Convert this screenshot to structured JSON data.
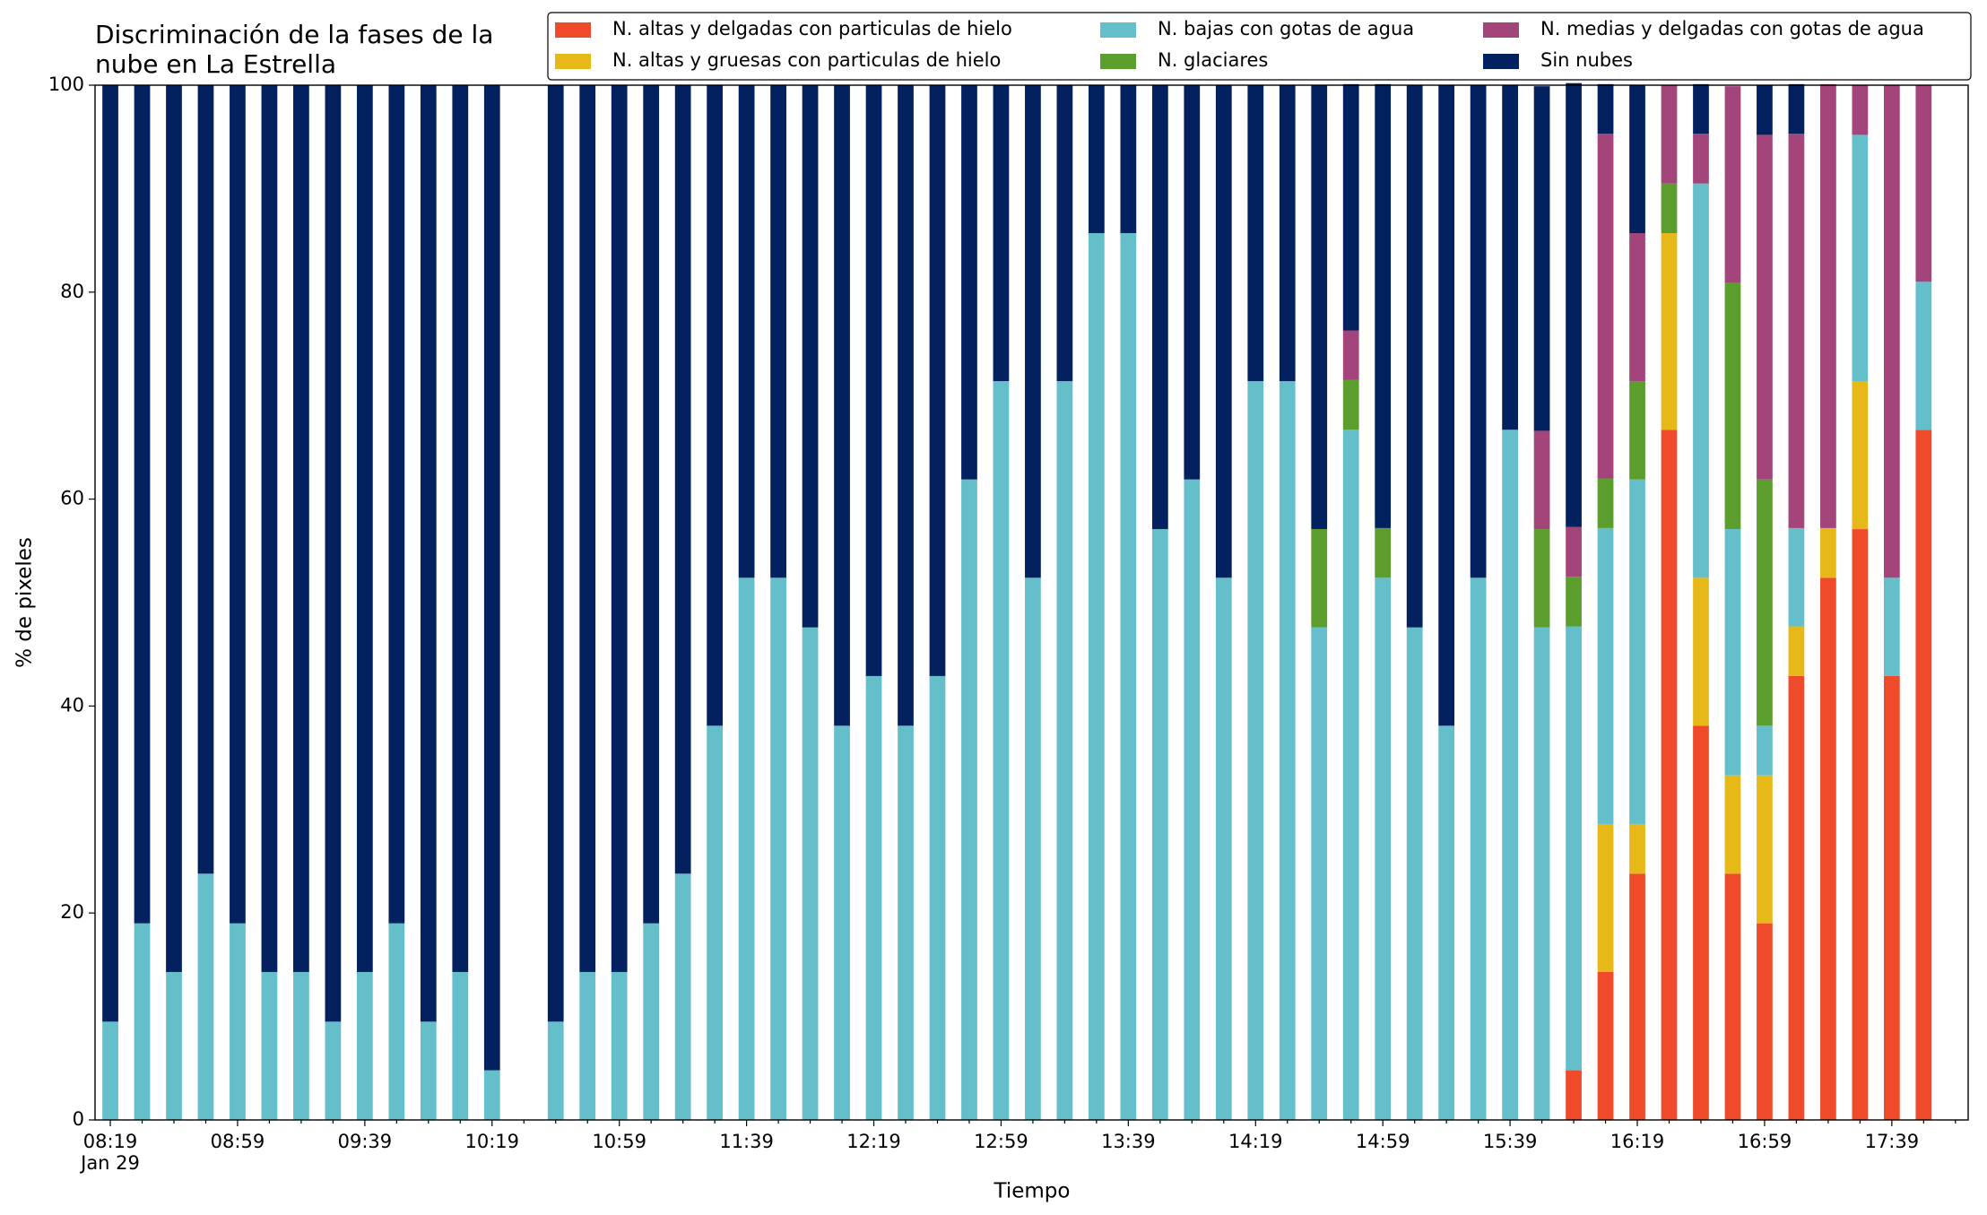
{
  "chart_data": {
    "type": "stacked_bar",
    "title": "Discriminación de la fases de la\nnube en La Estrella",
    "xlabel": "Tiempo",
    "ylabel": "% de pixeles",
    "categories": [
      "08:19\nJan 29",
      null,
      null,
      null,
      "08:59",
      null,
      null,
      null,
      "09:39",
      null,
      null,
      null,
      "10:19",
      null,
      null,
      null,
      "10:59",
      null,
      null,
      null,
      "11:39",
      null,
      null,
      null,
      "12:19",
      null,
      null,
      null,
      "12:59",
      null,
      null,
      null,
      "13:39",
      null,
      null,
      null,
      "14:19",
      null,
      null,
      null,
      "14:59",
      null,
      null,
      null,
      "15:39",
      null,
      null,
      null,
      "16:19",
      null,
      null,
      null,
      "16:59",
      null,
      null,
      null,
      "17:39",
      null
    ],
    "ylim": [
      0,
      100
    ],
    "yticks": [
      0,
      20,
      40,
      60,
      80,
      100
    ],
    "legend": "upper right",
    "series": [
      {
        "name": "N. altas y delgadas con particulas de hielo",
        "color": "#ef4b2b",
        "values": [
          0,
          0,
          0,
          0,
          0,
          0,
          0,
          0,
          0,
          0,
          0,
          0,
          0,
          null,
          0,
          0,
          0,
          0,
          0,
          0,
          0,
          0,
          0,
          0,
          0,
          0,
          0,
          0,
          0,
          0,
          0,
          0,
          0,
          0,
          0,
          0,
          0,
          0,
          0,
          0,
          0,
          0,
          0,
          0,
          0,
          0,
          4.8,
          14.3,
          23.8,
          66.7,
          38.1,
          23.8,
          19.0,
          42.9,
          52.4,
          57.1,
          42.9,
          66.7
        ]
      },
      {
        "name": "N. altas y gruesas con particulas de hielo",
        "color": "#e6b818",
        "values": [
          0,
          0,
          0,
          0,
          0,
          0,
          0,
          0,
          0,
          0,
          0,
          0,
          0,
          null,
          0,
          0,
          0,
          0,
          0,
          0,
          0,
          0,
          0,
          0,
          0,
          0,
          0,
          0,
          0,
          0,
          0,
          0,
          0,
          0,
          0,
          0,
          0,
          0,
          0,
          0,
          0,
          0,
          0,
          0,
          0,
          0,
          0,
          14.3,
          4.8,
          19.0,
          14.3,
          9.5,
          14.3,
          4.8,
          4.8,
          14.3,
          0,
          0
        ]
      },
      {
        "name": "N. bajas con gotas de agua",
        "color": "#65bfcb",
        "values": [
          9.5,
          19.0,
          14.3,
          23.8,
          19.0,
          14.3,
          14.3,
          9.5,
          14.3,
          19.0,
          9.5,
          14.3,
          4.8,
          null,
          9.5,
          14.3,
          14.3,
          19.0,
          23.8,
          38.1,
          52.4,
          52.4,
          47.6,
          38.1,
          42.9,
          38.1,
          42.9,
          61.9,
          71.4,
          52.4,
          71.4,
          85.7,
          85.7,
          57.1,
          61.9,
          52.4,
          71.4,
          71.4,
          47.6,
          66.7,
          52.4,
          47.6,
          38.1,
          52.4,
          66.7,
          47.6,
          42.9,
          28.6,
          33.3,
          0,
          38.1,
          23.8,
          4.8,
          9.5,
          0,
          23.8,
          9.5,
          14.3
        ]
      },
      {
        "name": "N. glaciares",
        "color": "#5c9e2e",
        "values": [
          0,
          0,
          0,
          0,
          0,
          0,
          0,
          0,
          0,
          0,
          0,
          0,
          0,
          null,
          0,
          0,
          0,
          0,
          0,
          0,
          0,
          0,
          0,
          0,
          0,
          0,
          0,
          0,
          0,
          0,
          0,
          0,
          0,
          0,
          0,
          0,
          0,
          0,
          9.5,
          4.8,
          4.8,
          0,
          0,
          0,
          0,
          9.5,
          4.8,
          4.8,
          9.5,
          4.8,
          0,
          23.8,
          23.8,
          0,
          0,
          0,
          0,
          0
        ]
      },
      {
        "name": "N. medias y delgadas con gotas de agua",
        "color": "#a3457b",
        "values": [
          0,
          0,
          0,
          0,
          0,
          0,
          0,
          0,
          0,
          0,
          0,
          0,
          0,
          null,
          0,
          0,
          0,
          0,
          0,
          0,
          0,
          0,
          0,
          0,
          0,
          0,
          0,
          0,
          0,
          0,
          0,
          0,
          0,
          0,
          0,
          0,
          0,
          0,
          0,
          4.8,
          0,
          0,
          0,
          0,
          0,
          9.5,
          4.8,
          33.3,
          14.3,
          9.5,
          4.8,
          19.0,
          33.3,
          38.1,
          42.9,
          4.8,
          47.6,
          19.0
        ]
      },
      {
        "name": "Sin nubes",
        "color": "#03205f",
        "values": [
          90.5,
          81.0,
          85.7,
          76.2,
          81.0,
          85.7,
          85.7,
          90.5,
          85.7,
          81.0,
          90.5,
          85.7,
          95.2,
          null,
          90.5,
          85.7,
          85.7,
          81.0,
          76.2,
          61.9,
          47.6,
          47.6,
          52.4,
          61.9,
          57.1,
          61.9,
          57.1,
          38.1,
          28.6,
          47.6,
          28.6,
          14.3,
          14.3,
          42.9,
          38.1,
          47.6,
          28.6,
          28.6,
          42.9,
          23.8,
          42.9,
          52.4,
          61.9,
          47.6,
          33.3,
          33.3,
          42.9,
          4.8,
          14.3,
          0,
          4.8,
          0,
          4.8,
          4.8,
          0,
          0,
          0,
          0
        ]
      }
    ]
  }
}
